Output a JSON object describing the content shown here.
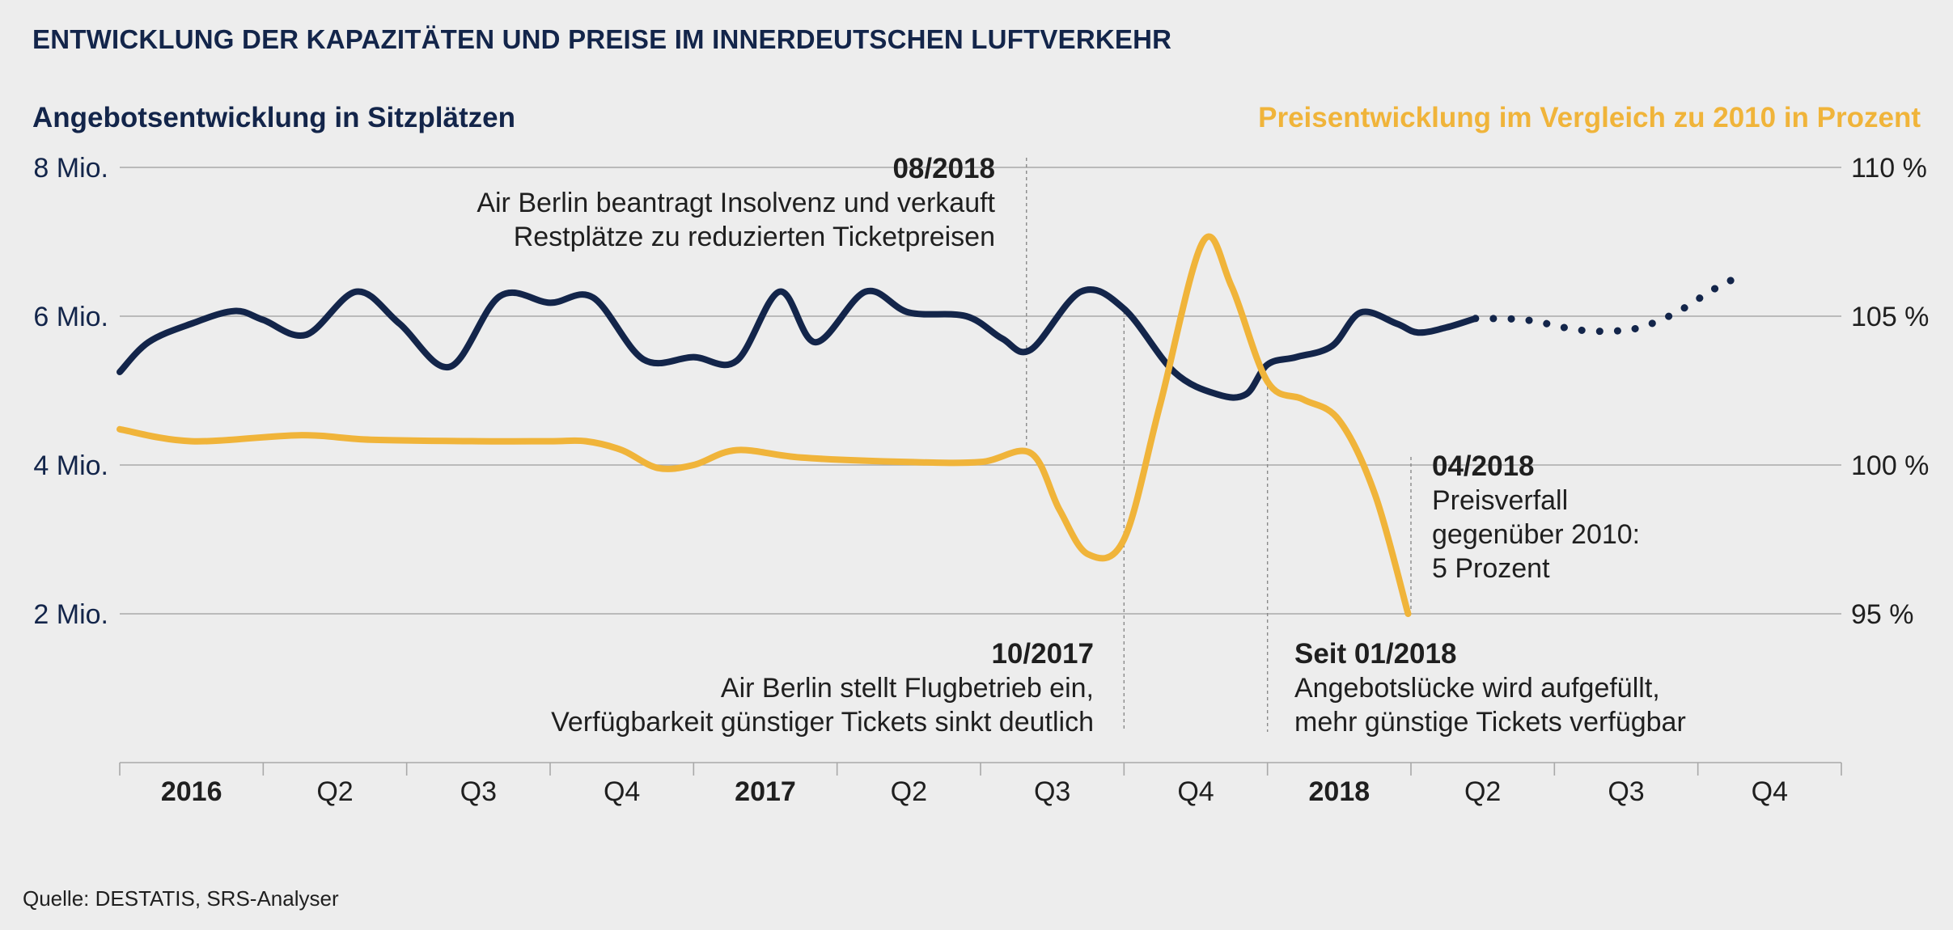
{
  "title": "ENTWICKLUNG DER KAPAZITÄTEN UND PREISE IM INNERDEUTSCHEN LUFTVERKEHR",
  "source": "Quelle: DESTATIS, SRS-Analyser",
  "colors": {
    "capacity": "#13254a",
    "price": "#f0b43a",
    "grid": "#a9a9a9",
    "background": "#ededed"
  },
  "chart_data": {
    "type": "line",
    "left_axis": {
      "title": "Angebotsentwicklung in Sitzplätzen",
      "ticks": [
        "2 Mio.",
        "4 Mio.",
        "6 Mio.",
        "8 Mio."
      ],
      "tick_values": [
        2,
        4,
        6,
        8
      ],
      "ylim": [
        0,
        8
      ]
    },
    "right_axis": {
      "title": "Preisentwicklung im Vergleich zu 2010 in Prozent",
      "ticks": [
        "95 %",
        "100 %",
        "105 %",
        "110 %"
      ],
      "tick_values": [
        95,
        100,
        105,
        110
      ],
      "ylim": [
        90,
        110
      ]
    },
    "x_axis": {
      "labels": [
        "2016",
        "Q2",
        "Q3",
        "Q4",
        "2017",
        "Q2",
        "Q3",
        "Q4",
        "2018",
        "Q2",
        "Q3",
        "Q4"
      ],
      "bold": [
        true,
        false,
        false,
        false,
        true,
        false,
        false,
        false,
        true,
        false,
        false,
        false
      ],
      "range": [
        0,
        12
      ]
    },
    "series": [
      {
        "axis": "left",
        "style": "solid",
        "points": [
          [
            0,
            5.25
          ],
          [
            0.2,
            5.65
          ],
          [
            0.5,
            5.9
          ],
          [
            0.8,
            6.07
          ],
          [
            1.0,
            5.95
          ],
          [
            1.3,
            5.75
          ],
          [
            1.65,
            6.33
          ],
          [
            1.95,
            5.9
          ],
          [
            2.3,
            5.32
          ],
          [
            2.65,
            6.27
          ],
          [
            3.0,
            6.18
          ],
          [
            3.3,
            6.25
          ],
          [
            3.65,
            5.42
          ],
          [
            4.0,
            5.45
          ],
          [
            4.3,
            5.4
          ],
          [
            4.6,
            6.33
          ],
          [
            4.85,
            5.65
          ],
          [
            5.2,
            6.33
          ],
          [
            5.5,
            6.05
          ],
          [
            5.9,
            6.0
          ],
          [
            6.15,
            5.7
          ],
          [
            6.35,
            5.55
          ],
          [
            6.7,
            6.33
          ],
          [
            7.0,
            6.1
          ],
          [
            7.35,
            5.25
          ],
          [
            7.65,
            4.95
          ],
          [
            7.85,
            4.95
          ],
          [
            8.0,
            5.35
          ],
          [
            8.2,
            5.45
          ],
          [
            8.45,
            5.6
          ],
          [
            8.65,
            6.05
          ],
          [
            8.9,
            5.9
          ],
          [
            9.05,
            5.78
          ],
          [
            9.25,
            5.85
          ],
          [
            9.45,
            5.97
          ]
        ]
      },
      {
        "axis": "left",
        "style": "dotted",
        "points": [
          [
            9.45,
            5.97
          ],
          [
            9.8,
            5.95
          ],
          [
            10.15,
            5.82
          ],
          [
            10.4,
            5.8
          ],
          [
            10.6,
            5.85
          ],
          [
            10.85,
            6.05
          ],
          [
            11.1,
            6.35
          ],
          [
            11.25,
            6.5
          ]
        ]
      },
      {
        "axis": "right",
        "style": "solid",
        "points": [
          [
            0,
            101.2
          ],
          [
            0.5,
            100.8
          ],
          [
            1.25,
            101.0
          ],
          [
            1.75,
            100.85
          ],
          [
            2.5,
            100.8
          ],
          [
            3.0,
            100.8
          ],
          [
            3.25,
            100.8
          ],
          [
            3.5,
            100.5
          ],
          [
            3.75,
            99.9
          ],
          [
            4.0,
            100.0
          ],
          [
            4.3,
            100.5
          ],
          [
            4.75,
            100.25
          ],
          [
            5.5,
            100.1
          ],
          [
            6.0,
            100.1
          ],
          [
            6.35,
            100.4
          ],
          [
            6.55,
            98.5
          ],
          [
            6.75,
            97.0
          ],
          [
            7.0,
            97.5
          ],
          [
            7.25,
            102.0
          ],
          [
            7.55,
            107.5
          ],
          [
            7.75,
            106.0
          ],
          [
            8.0,
            102.8
          ],
          [
            8.25,
            102.2
          ],
          [
            8.5,
            101.5
          ],
          [
            8.75,
            99.0
          ],
          [
            8.98,
            95.0
          ]
        ]
      }
    ],
    "annotations": [
      {
        "date": "08/2018",
        "text": [
          "Air Berlin beantragt Insolvenz und verkauft",
          "Restplätze zu reduzierten Ticketpreisen"
        ]
      },
      {
        "date": "10/2017",
        "text": [
          "Air Berlin stellt Flugbetrieb ein,",
          "Verfügbarkeit günstiger Tickets sinkt deutlich"
        ]
      },
      {
        "date": "Seit 01/2018",
        "text": [
          "Angebotslücke wird aufgefüllt,",
          "mehr günstige Tickets verfügbar"
        ]
      },
      {
        "date": "04/2018",
        "text": [
          "Preisverfall",
          "gegenüber 2010:",
          "5 Prozent"
        ]
      }
    ]
  }
}
